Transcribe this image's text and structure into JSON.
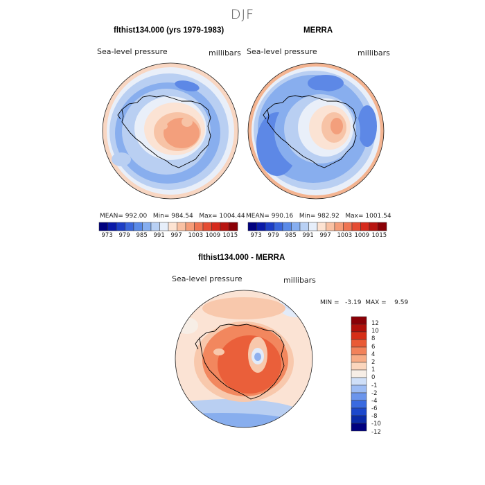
{
  "suptitle": "DJF",
  "top_left": {
    "title": "flthist134.000 (yrs 1979-1983)",
    "variable": "Sea-level pressure",
    "units": "millibars",
    "stats": {
      "mean_label": "MEAN=",
      "mean": "992.00",
      "min_label": "Min=",
      "min": "984.54",
      "max_label": "Max=",
      "max": "1004.44"
    }
  },
  "top_right": {
    "title": "MERRA",
    "variable": "Sea-level pressure",
    "units": "millibars",
    "stats": {
      "mean_label": "MEAN=",
      "mean": "990.16",
      "min_label": "Min=",
      "min": "982.92",
      "max_label": "Max=",
      "max": "1001.54"
    }
  },
  "bottom": {
    "title": "flthist134.000 - MERRA",
    "variable": "Sea-level pressure",
    "units": "millibars",
    "stats": {
      "min_label": "MIN =",
      "min": "-3.19",
      "max_label": "MAX =",
      "max": "9.59"
    }
  },
  "colors": {
    "abs_scale": [
      "#00007f",
      "#0a1aa8",
      "#1d3ec6",
      "#3a66dc",
      "#5a8ae8",
      "#86aef0",
      "#b8d0f4",
      "#e6eefa",
      "#fde3d2",
      "#f9c1a3",
      "#f59c78",
      "#ef7452",
      "#e54c32",
      "#d62a1c",
      "#b81410",
      "#8a0006"
    ],
    "diff_scale": [
      "#00007f",
      "#0a2aa8",
      "#1c48cc",
      "#3a6ae0",
      "#6b95ec",
      "#9dbcf4",
      "#cfdff8",
      "#f7eee6",
      "#fbd6bd",
      "#f7ac86",
      "#f2825a",
      "#e95a35",
      "#d62f18",
      "#b0100a",
      "#8a0006"
    ],
    "coast": "#000000",
    "rim": "#222222"
  },
  "chart_data": [
    {
      "type": "heatmap",
      "projection": "south-polar-stereographic",
      "title": "flthist134.000 (yrs 1979-1983)",
      "subtitle": "DJF",
      "variable": "Sea-level pressure",
      "units": "millibars",
      "colorbar_ticks": [
        973,
        979,
        985,
        991,
        997,
        1003,
        1009,
        1015
      ],
      "contour_levels": [
        973,
        976,
        979,
        982,
        985,
        988,
        991,
        994,
        997,
        1000,
        1003,
        1006,
        1009,
        1012,
        1015
      ],
      "mean": 992.0,
      "min": 984.54,
      "max": 1004.44
    },
    {
      "type": "heatmap",
      "projection": "south-polar-stereographic",
      "title": "MERRA",
      "subtitle": "DJF",
      "variable": "Sea-level pressure",
      "units": "millibars",
      "colorbar_ticks": [
        973,
        979,
        985,
        991,
        997,
        1003,
        1009,
        1015
      ],
      "contour_levels": [
        973,
        976,
        979,
        982,
        985,
        988,
        991,
        994,
        997,
        1000,
        1003,
        1006,
        1009,
        1012,
        1015
      ],
      "mean": 990.16,
      "min": 982.92,
      "max": 1001.54
    },
    {
      "type": "heatmap",
      "projection": "south-polar-stereographic",
      "title": "flthist134.000 - MERRA",
      "subtitle": "DJF",
      "variable": "Sea-level pressure",
      "units": "millibars",
      "colorbar_ticks": [
        12,
        10,
        8,
        6,
        4,
        2,
        1,
        0,
        -1,
        -2,
        -4,
        -6,
        -8,
        -10,
        -12
      ],
      "min": -3.19,
      "max": 9.59
    }
  ]
}
